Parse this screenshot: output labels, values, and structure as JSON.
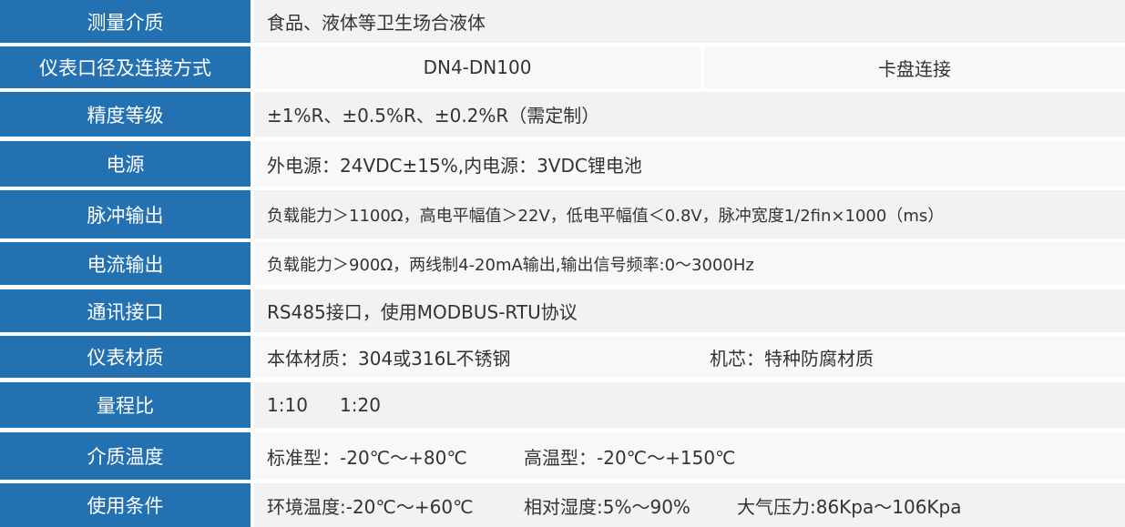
{
  "colors": {
    "label_bg": "#2371b0",
    "row_bg": "#f2f2f2",
    "row_alt_bg": "#f8f8f8"
  },
  "rows": [
    {
      "label": "测量介质",
      "value": "食品、液体等卫生场合液体"
    },
    {
      "label": "仪表口径及连接方式",
      "value": "DN4-DN100",
      "value2": "卡盘连接"
    },
    {
      "label": "精度等级",
      "value": "±1%R、±0.5%R、±0.2%R（需定制）"
    },
    {
      "label": "电源",
      "value": "外电源：24VDC±15%,内电源：3VDC锂电池"
    },
    {
      "label": "脉冲输出",
      "value": "负载能力＞1100Ω，高电平幅值＞22V，低电平幅值＜0.8V，脉冲宽度1/2fin×1000（ms）"
    },
    {
      "label": "电流输出",
      "value": "负载能力＞900Ω，两线制4-20mA输出,输出信号频率:0～3000Hz"
    },
    {
      "label": "通讯接口",
      "value": "RS485接口，使用MODBUS-RTU协议"
    },
    {
      "label": "仪表材质",
      "value": "本体材质：304或316L不锈钢",
      "value2": "机芯：特种防腐材质"
    },
    {
      "label": "量程比",
      "value": "1:10",
      "value2": "1:20"
    },
    {
      "label": "介质温度",
      "value": "标准型：-20℃～+80℃",
      "value2": "高温型：-20℃～+150℃"
    },
    {
      "label": "使用条件",
      "value": "环境温度:-20℃～+60℃",
      "value2": "相对湿度:5%～90%",
      "value3": "大气压力:86Kpa～106Kpa"
    }
  ]
}
